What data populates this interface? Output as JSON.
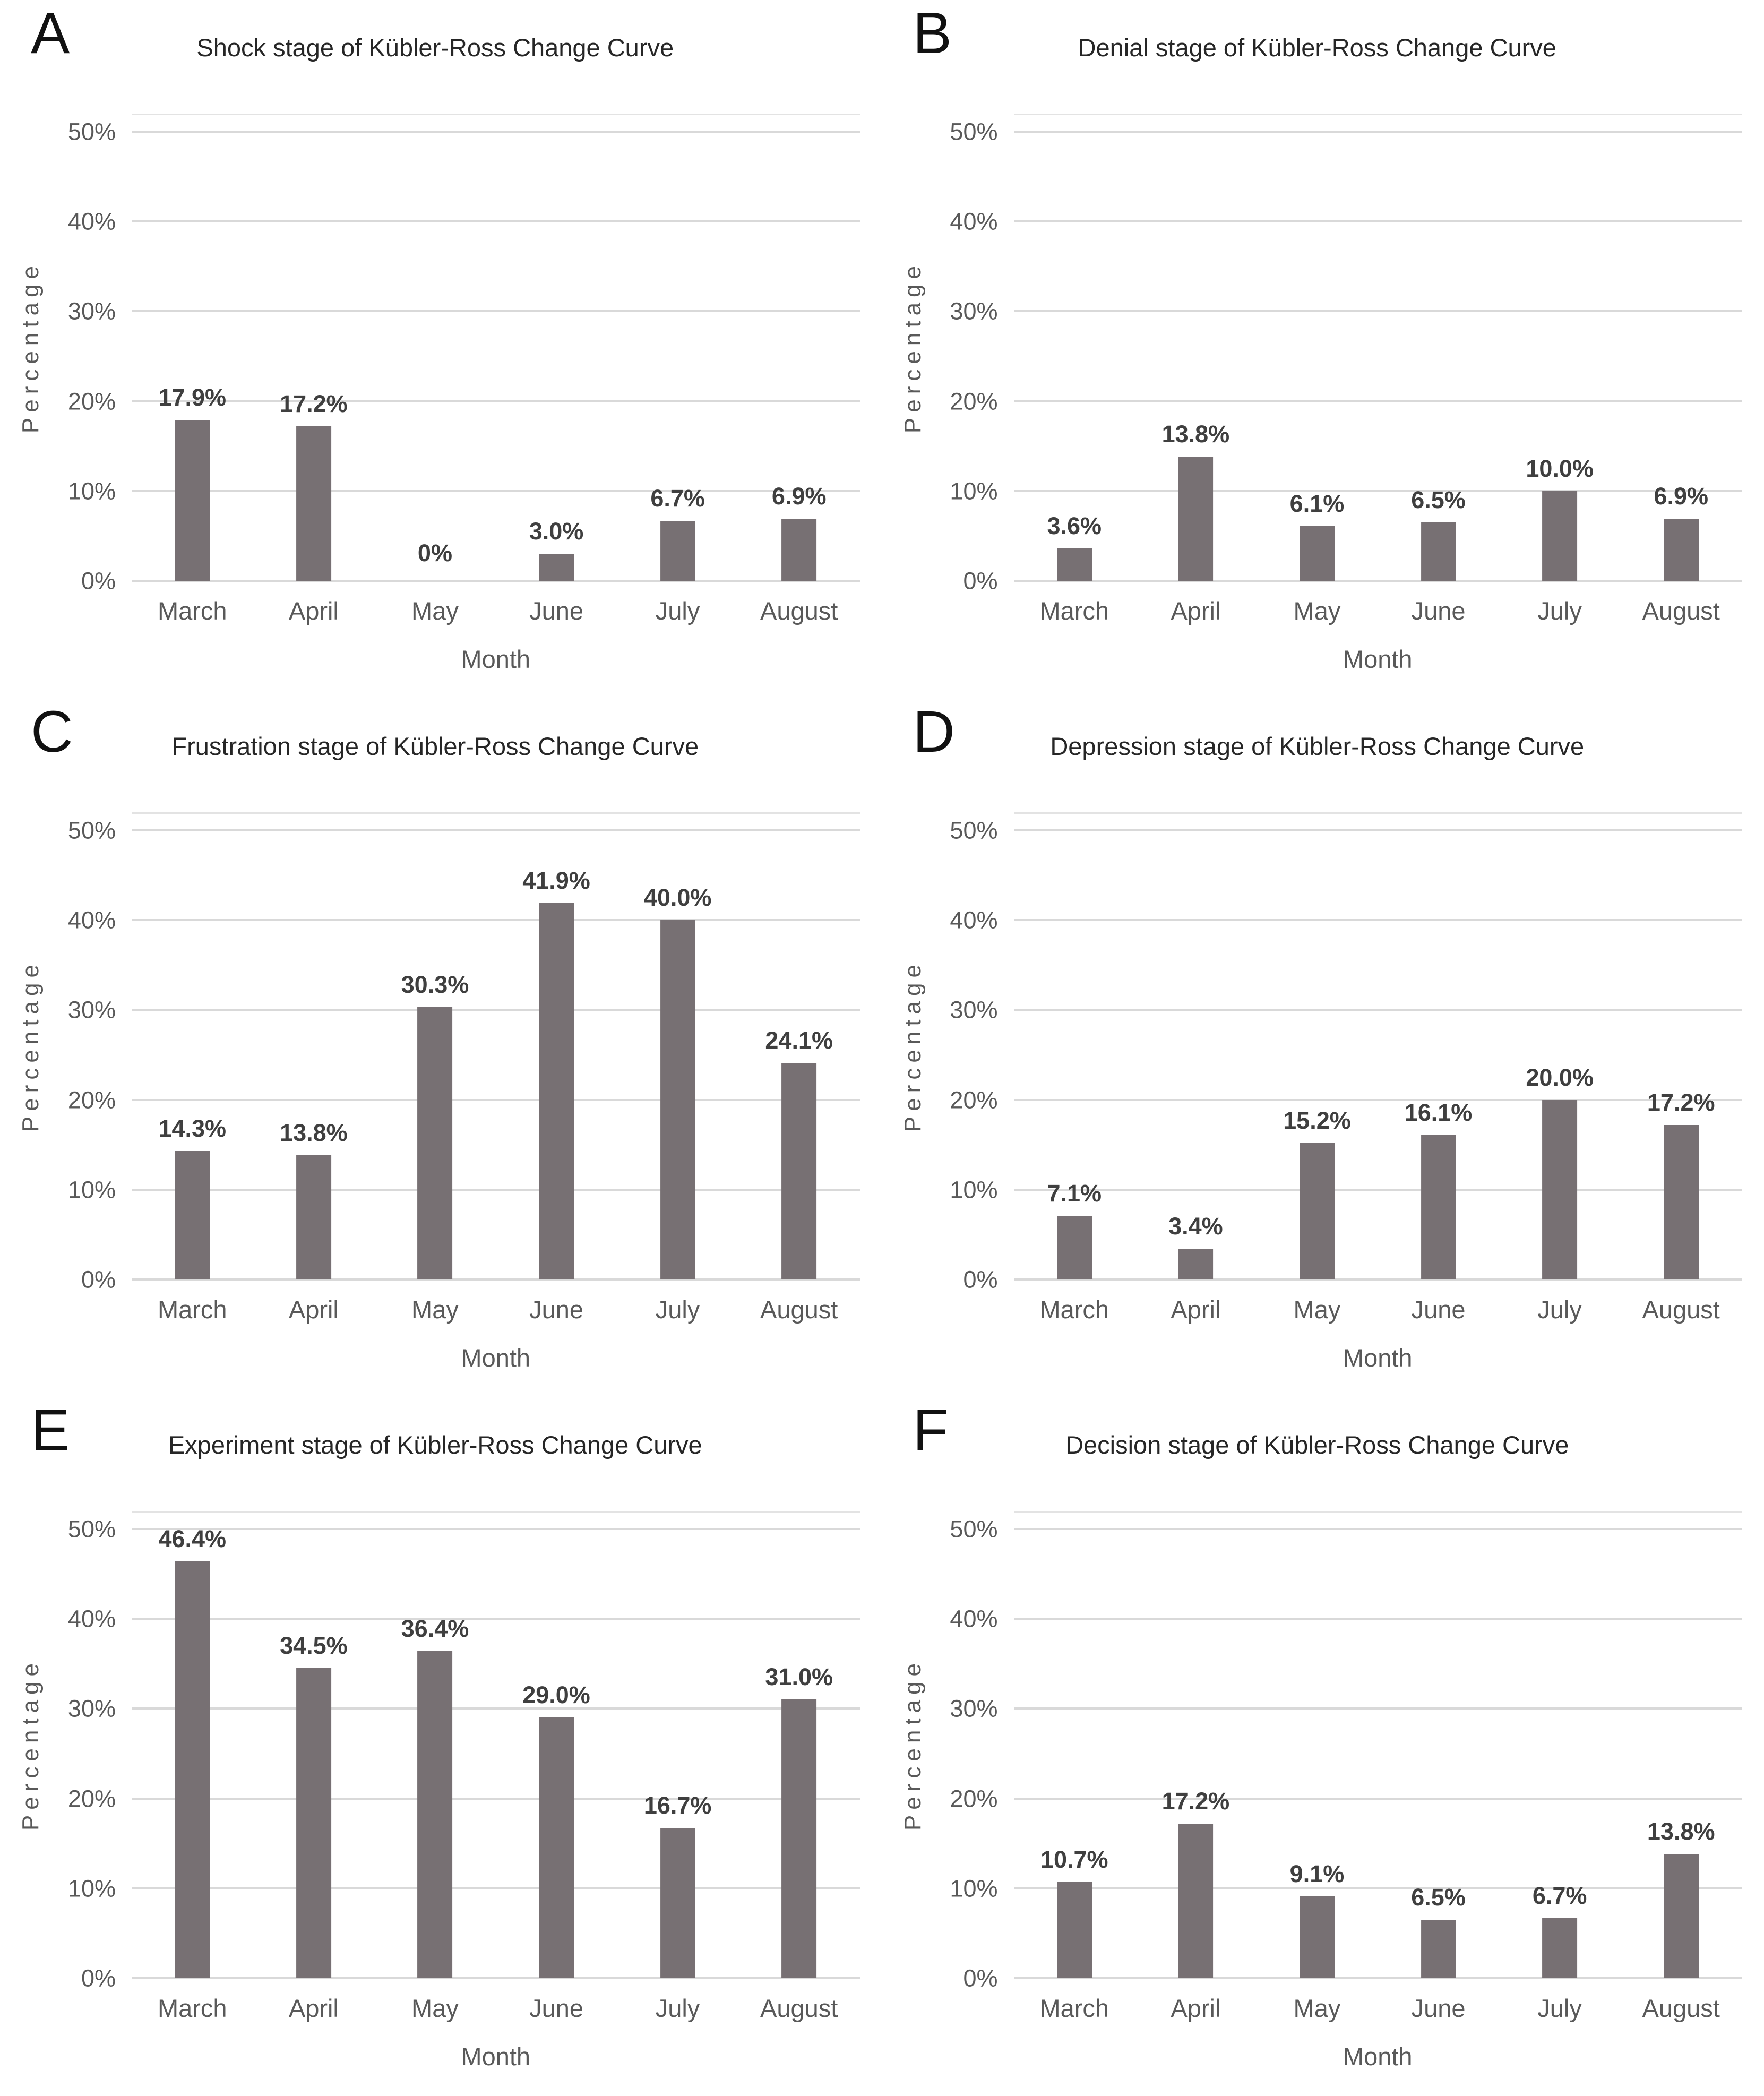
{
  "figure": {
    "description": "Six-panel bar chart figure showing percentages per month for stages of the Kübler-Ross Change Curve",
    "panels": [
      "A",
      "B",
      "C",
      "D",
      "E",
      "F"
    ]
  },
  "layout": {
    "plot_scale_max": 52,
    "grid": true,
    "legend": "none"
  },
  "colors": {
    "bar": "#777073",
    "gridline": "#d9d9d9",
    "plot_border": "#e3e3e3",
    "axis_text": "#595959",
    "title_text": "#262626",
    "data_label_text": "#3f3f3f",
    "panel_letter": "#111111",
    "background": "#ffffff"
  },
  "chart_data": [
    {
      "panel_label": "A",
      "type": "bar",
      "title": "Shock stage of Kübler-Ross Change Curve",
      "categories": [
        "March",
        "April",
        "May",
        "June",
        "July",
        "August"
      ],
      "values": [
        17.9,
        17.2,
        0,
        3.0,
        6.7,
        6.9
      ],
      "value_labels": [
        "17.9%",
        "17.2%",
        "0%",
        "3.0%",
        "6.7%",
        "6.9%"
      ],
      "xlabel": "Month",
      "ylabel": "Percentage",
      "ytick_values": [
        0,
        10,
        20,
        30,
        40,
        50
      ],
      "ytick_labels": [
        "0%",
        "10%",
        "20%",
        "30%",
        "40%",
        "50%"
      ],
      "ylim": [
        0,
        50
      ]
    },
    {
      "panel_label": "B",
      "type": "bar",
      "title": "Denial stage of Kübler-Ross Change Curve",
      "categories": [
        "March",
        "April",
        "May",
        "June",
        "July",
        "August"
      ],
      "values": [
        3.6,
        13.8,
        6.1,
        6.5,
        10.0,
        6.9
      ],
      "value_labels": [
        "3.6%",
        "13.8%",
        "6.1%",
        "6.5%",
        "10.0%",
        "6.9%"
      ],
      "xlabel": "Month",
      "ylabel": "Percentage",
      "ytick_values": [
        0,
        10,
        20,
        30,
        40,
        50
      ],
      "ytick_labels": [
        "0%",
        "10%",
        "20%",
        "30%",
        "40%",
        "50%"
      ],
      "ylim": [
        0,
        50
      ]
    },
    {
      "panel_label": "C",
      "type": "bar",
      "title": "Frustration stage of Kübler-Ross Change Curve",
      "categories": [
        "March",
        "April",
        "May",
        "June",
        "July",
        "August"
      ],
      "values": [
        14.3,
        13.8,
        30.3,
        41.9,
        40.0,
        24.1
      ],
      "value_labels": [
        "14.3%",
        "13.8%",
        "30.3%",
        "41.9%",
        "40.0%",
        "24.1%"
      ],
      "xlabel": "Month",
      "ylabel": "Percentage",
      "ytick_values": [
        0,
        10,
        20,
        30,
        40,
        50
      ],
      "ytick_labels": [
        "0%",
        "10%",
        "20%",
        "30%",
        "40%",
        "50%"
      ],
      "ylim": [
        0,
        50
      ]
    },
    {
      "panel_label": "D",
      "type": "bar",
      "title": "Depression stage of Kübler-Ross Change Curve",
      "categories": [
        "March",
        "April",
        "May",
        "June",
        "July",
        "August"
      ],
      "values": [
        7.1,
        3.4,
        15.2,
        16.1,
        20.0,
        17.2
      ],
      "value_labels": [
        "7.1%",
        "3.4%",
        "15.2%",
        "16.1%",
        "20.0%",
        "17.2%"
      ],
      "xlabel": "Month",
      "ylabel": "Percentage",
      "ytick_values": [
        0,
        10,
        20,
        30,
        40,
        50
      ],
      "ytick_labels": [
        "0%",
        "10%",
        "20%",
        "30%",
        "40%",
        "50%"
      ],
      "ylim": [
        0,
        50
      ]
    },
    {
      "panel_label": "E",
      "type": "bar",
      "title": "Experiment stage of Kübler-Ross Change Curve",
      "categories": [
        "March",
        "April",
        "May",
        "June",
        "July",
        "August"
      ],
      "values": [
        46.4,
        34.5,
        36.4,
        29.0,
        16.7,
        31.0
      ],
      "value_labels": [
        "46.4%",
        "34.5%",
        "36.4%",
        "29.0%",
        "16.7%",
        "31.0%"
      ],
      "xlabel": "Month",
      "ylabel": "Percentage",
      "ytick_values": [
        0,
        10,
        20,
        30,
        40,
        50
      ],
      "ytick_labels": [
        "0%",
        "10%",
        "20%",
        "30%",
        "40%",
        "50%"
      ],
      "ylim": [
        0,
        50
      ]
    },
    {
      "panel_label": "F",
      "type": "bar",
      "title": "Decision stage of Kübler-Ross Change Curve",
      "categories": [
        "March",
        "April",
        "May",
        "June",
        "July",
        "August"
      ],
      "values": [
        10.7,
        17.2,
        9.1,
        6.5,
        6.7,
        13.8
      ],
      "value_labels": [
        "10.7%",
        "17.2%",
        "9.1%",
        "6.5%",
        "6.7%",
        "13.8%"
      ],
      "xlabel": "Month",
      "ylabel": "Percentage",
      "ytick_values": [
        0,
        10,
        20,
        30,
        40,
        50
      ],
      "ytick_labels": [
        "0%",
        "10%",
        "20%",
        "30%",
        "40%",
        "50%"
      ],
      "ylim": [
        0,
        50
      ]
    }
  ]
}
